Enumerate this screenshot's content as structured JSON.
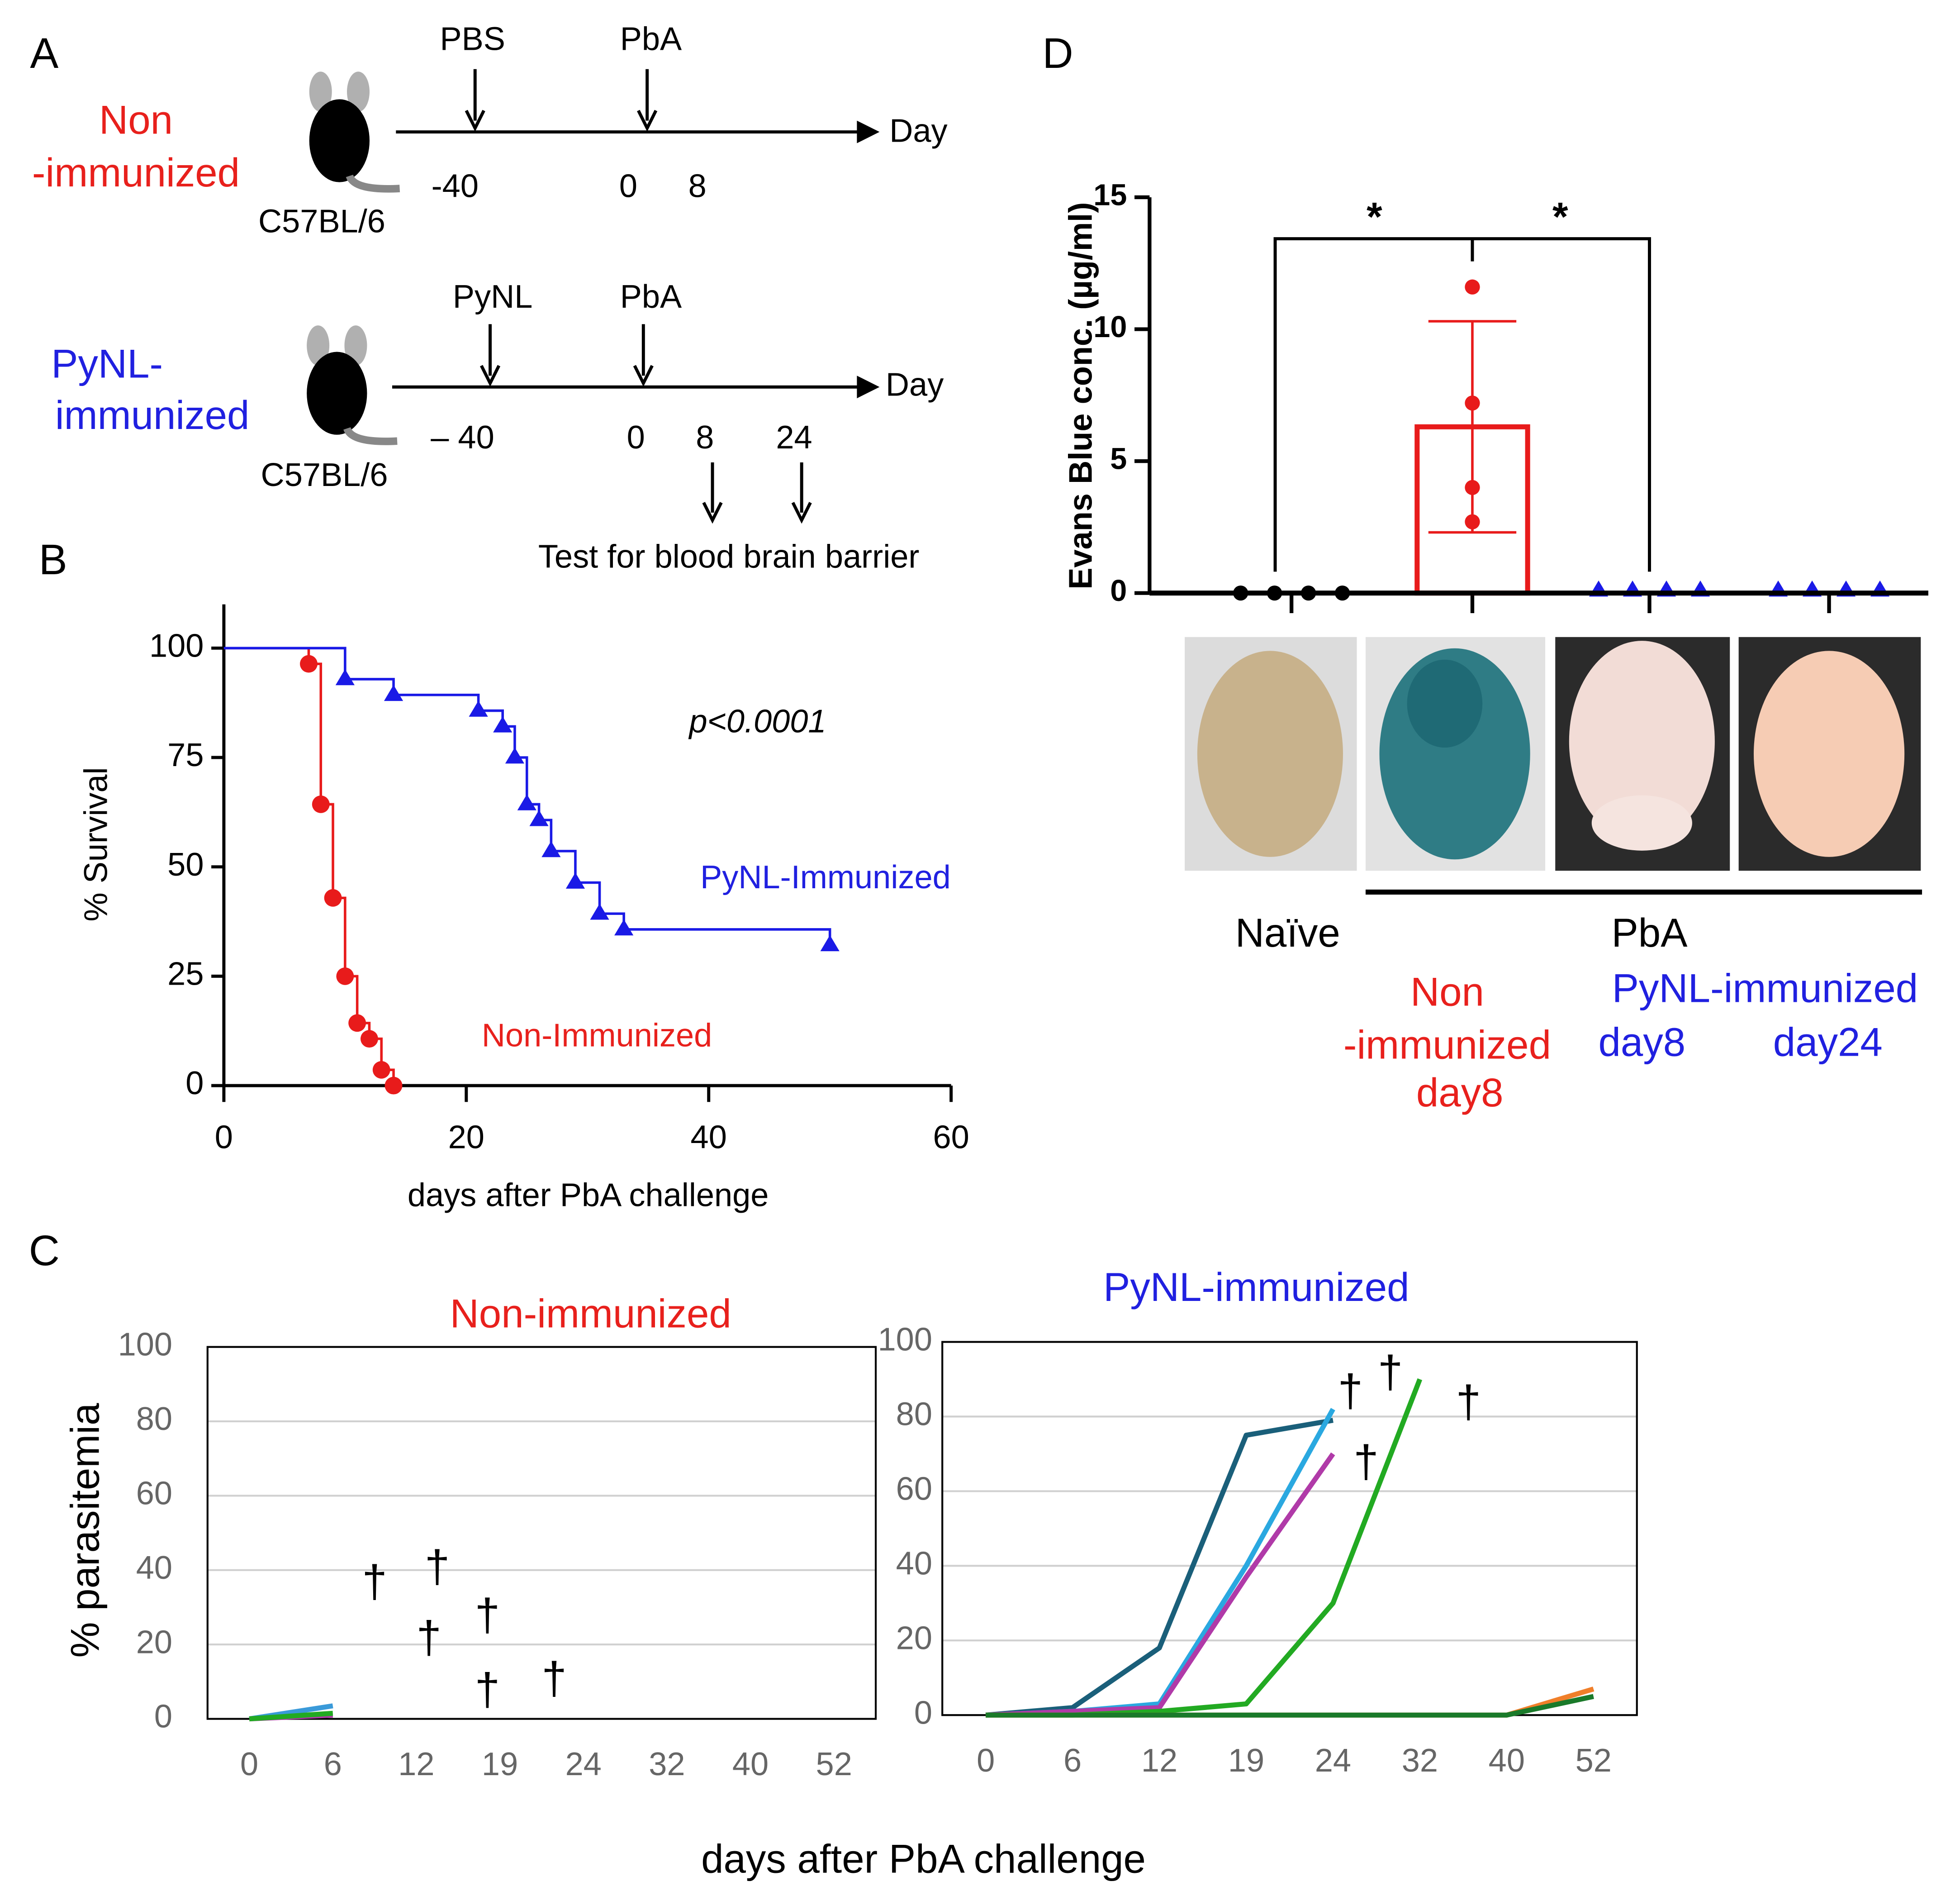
{
  "panel_labels": [
    "A",
    "B",
    "C",
    "D"
  ],
  "schematic": {
    "rows": [
      {
        "group": [
          "Non",
          "-immunized"
        ],
        "strain": "C57BL/6",
        "events": [
          "PBS",
          "PbA"
        ],
        "days": [
          "-40",
          "0",
          "8"
        ],
        "axis_label": "Day"
      },
      {
        "group": [
          "PyNL-",
          "immunized"
        ],
        "strain": "C57BL/6",
        "events": [
          "PyNL",
          "PbA"
        ],
        "days": [
          "– 40",
          "0",
          "8",
          "24"
        ],
        "axis_label": "Day"
      }
    ],
    "test_label": "Test for blood brain barrier"
  },
  "chart_data": [
    {
      "type": "step",
      "xlabel": "days after PbA challenge",
      "ylabel": "% Survival",
      "annotation": "p<0.0001",
      "xlim": [
        0,
        60
      ],
      "xticks": [
        0,
        20,
        40,
        60
      ],
      "ylim": [
        0,
        110
      ],
      "yticks": [
        0,
        25,
        50,
        75,
        100
      ],
      "series": [
        {
          "name": "Non-Immunized",
          "color": "#e81b1b",
          "marker": "circle",
          "x": [
            0,
            7,
            8,
            9,
            10,
            11,
            12,
            13,
            14
          ],
          "y": [
            100,
            96.4,
            64.3,
            42.9,
            25,
            14.3,
            10.7,
            3.6,
            0
          ]
        },
        {
          "name": "PyNL-Immunized",
          "color": "#1a1ae6",
          "marker": "triangle",
          "x": [
            0,
            10,
            14,
            21,
            23,
            24,
            25,
            26,
            27,
            29,
            31,
            33,
            50
          ],
          "y": [
            100,
            92.9,
            89.3,
            85.7,
            82.1,
            75,
            64.3,
            60.7,
            53.6,
            46.4,
            39.3,
            35.7,
            32.1
          ]
        }
      ]
    },
    {
      "type": "line",
      "title": "Non-immunized",
      "ylabel": "% parasitemia",
      "categories": [
        "0",
        "6",
        "12",
        "19",
        "24",
        "32",
        "40",
        "52"
      ],
      "ylim": [
        0,
        100
      ],
      "yticks": [
        0,
        20,
        40,
        60,
        80,
        100
      ],
      "grid": true,
      "series": [
        {
          "color": "#3a9ad9",
          "values": [
            0,
            3.5,
            null,
            null,
            null,
            null,
            null,
            null
          ]
        },
        {
          "color": "#b03aa8",
          "values": [
            0,
            1,
            null,
            null,
            null,
            null,
            null,
            null
          ]
        },
        {
          "color": "#22aa22",
          "values": [
            0,
            1.5,
            null,
            null,
            null,
            null,
            null,
            null
          ]
        }
      ],
      "annotations": [
        {
          "text": "†",
          "x": 1.5,
          "y": 36
        },
        {
          "text": "†",
          "x": 2.25,
          "y": 40
        },
        {
          "text": "†",
          "x": 2.15,
          "y": 21
        },
        {
          "text": "†",
          "x": 2.85,
          "y": 27
        },
        {
          "text": "†",
          "x": 2.85,
          "y": 7
        },
        {
          "text": "†",
          "x": 3.65,
          "y": 10
        }
      ]
    },
    {
      "type": "line",
      "title": "PyNL-immunized",
      "categories": [
        "0",
        "6",
        "12",
        "19",
        "24",
        "32",
        "40",
        "52"
      ],
      "ylim": [
        0,
        100
      ],
      "yticks": [
        0,
        20,
        40,
        60,
        80,
        100
      ],
      "grid": true,
      "series": [
        {
          "color": "#1a5f7a",
          "values": [
            0,
            2,
            18,
            75,
            79,
            null,
            null,
            null
          ]
        },
        {
          "color": "#2aa8e0",
          "values": [
            0,
            1,
            3,
            40,
            82,
            null,
            null,
            null
          ]
        },
        {
          "color": "#b03aa8",
          "values": [
            0,
            1,
            2,
            37,
            70,
            null,
            null,
            null
          ]
        },
        {
          "color": "#22aa22",
          "values": [
            0,
            0,
            1,
            3,
            30,
            90,
            null,
            null
          ]
        },
        {
          "color": "#f07f2a",
          "values": [
            0,
            0,
            0,
            0,
            0,
            0,
            0,
            7
          ]
        },
        {
          "color": "#1a7a2a",
          "values": [
            0,
            0,
            0,
            0,
            0,
            0,
            0,
            5
          ]
        }
      ],
      "annotations": [
        {
          "text": "†",
          "x": 4.2,
          "y": 86
        },
        {
          "text": "†",
          "x": 4.66,
          "y": 91
        },
        {
          "text": "†",
          "x": 5.56,
          "y": 83
        },
        {
          "text": "†",
          "x": 4.38,
          "y": 67
        }
      ]
    },
    {
      "type": "bar",
      "ylabel": "Evans Blue conc. (µg/ml)",
      "ylim": [
        0,
        15
      ],
      "yticks": [
        0,
        5,
        10,
        15
      ],
      "values": [
        0,
        6.3,
        0,
        0
      ],
      "errors": [
        null,
        4,
        null,
        null
      ],
      "bar_color": "#e81b1b",
      "points": [
        [
          0,
          0,
          0,
          0
        ],
        [
          11.6,
          7.2,
          4,
          2.7
        ],
        [
          0,
          0,
          0,
          0
        ],
        [
          0,
          0,
          0,
          0
        ]
      ],
      "point_colors": [
        "#000000",
        "#e81b1b",
        "#1a1ae6",
        "#1a1ae6"
      ],
      "point_markers": [
        "circle",
        "circle",
        "triangle",
        "triangle"
      ],
      "significance": [
        "*",
        "*"
      ],
      "labels": {
        "naive": "Naïve",
        "pba": "PbA",
        "non_immunized": [
          "Non",
          "-immunized",
          "day8"
        ],
        "pynl": "PyNL-immunized",
        "pynl_days": [
          "day8",
          "day24"
        ]
      }
    }
  ],
  "parasitemia_xlabel": "days after PbA challenge"
}
